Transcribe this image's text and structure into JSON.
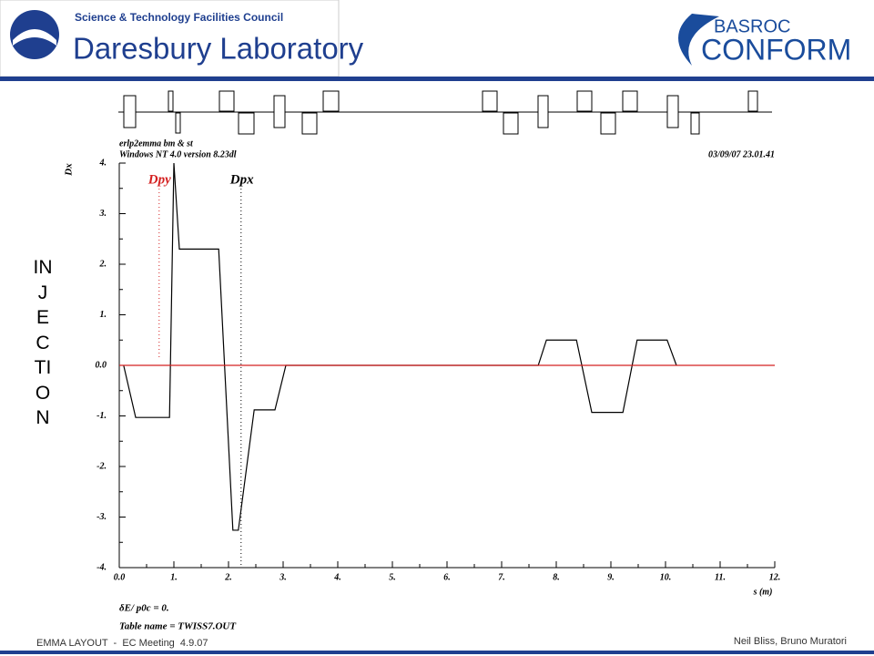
{
  "header": {
    "org": "Science & Technology Facilities Council",
    "lab": "Daresbury Laboratory",
    "logo_top": "BASROC",
    "logo_main": "CONFORM"
  },
  "side_title": "INJECTION",
  "footer": {
    "left": "EMMA LAYOUT  -  EC Meeting  4.9.07",
    "right": "Neil Bliss, Bruno Muratori"
  },
  "chart_data": {
    "type": "line",
    "title": "erlp2emma bm & st",
    "subtitle": "Windows NT 4.0 version 8.23dl",
    "timestamp": "03/09/07  23.01.41",
    "ylabel": "Dx",
    "xlabel": "s (m)",
    "notes": [
      "δE/ p0c  =  0.",
      "Table name = TWISS7.OUT"
    ],
    "xlim": [
      0,
      12
    ],
    "ylim": [
      -4,
      4
    ],
    "xticks": [
      {
        "value": 0,
        "label": "0.0"
      },
      {
        "value": 1,
        "label": "1."
      },
      {
        "value": 2,
        "label": "2."
      },
      {
        "value": 3,
        "label": "3."
      },
      {
        "value": 4,
        "label": "4."
      },
      {
        "value": 5,
        "label": "5."
      },
      {
        "value": 6,
        "label": "6."
      },
      {
        "value": 7,
        "label": "7."
      },
      {
        "value": 8,
        "label": "8."
      },
      {
        "value": 9,
        "label": "9."
      },
      {
        "value": 10,
        "label": "10."
      },
      {
        "value": 11,
        "label": "11."
      },
      {
        "value": 12,
        "label": "12."
      }
    ],
    "yticks": [
      {
        "value": 4,
        "label": "4."
      },
      {
        "value": 3,
        "label": "3."
      },
      {
        "value": 2,
        "label": "2."
      },
      {
        "value": 1,
        "label": "1."
      },
      {
        "value": 0,
        "label": "0.0"
      },
      {
        "value": -1,
        "label": "-1."
      },
      {
        "value": -2,
        "label": "-2."
      },
      {
        "value": -3,
        "label": "-3."
      },
      {
        "value": -4,
        "label": "-4."
      }
    ],
    "series": [
      {
        "name": "Dpx",
        "color": "#000000",
        "marker": 2.23,
        "x": [
          0.08,
          0.3,
          0.92,
          1.0,
          1.1,
          1.82,
          2.08,
          2.18,
          2.47,
          2.85,
          3.05,
          7.67,
          7.82,
          8.37,
          8.65,
          9.22,
          9.48,
          10.03,
          10.2
        ],
        "values": [
          0,
          -1.03,
          -1.03,
          4.0,
          2.3,
          2.3,
          -3.26,
          -3.26,
          -0.88,
          -0.88,
          0,
          0,
          0.5,
          0.5,
          -0.93,
          -0.93,
          0.5,
          0.5,
          0
        ]
      },
      {
        "name": "Dpy",
        "color": "#d42020",
        "marker": 0.73,
        "x": [
          0,
          12
        ],
        "values": [
          0,
          0
        ]
      }
    ]
  }
}
